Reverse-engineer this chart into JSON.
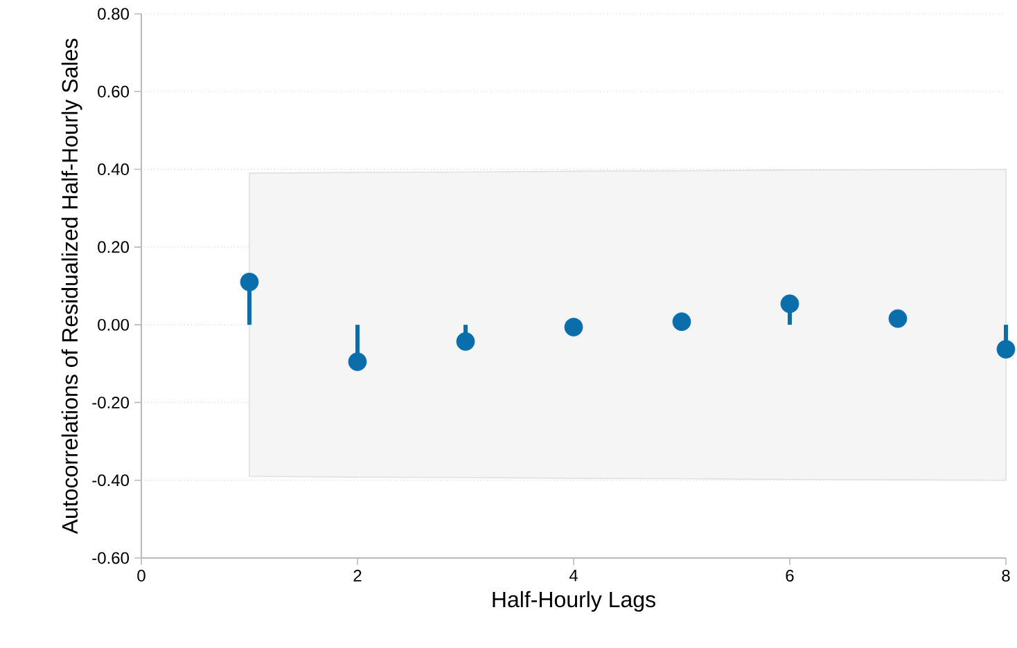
{
  "chart_data": {
    "type": "lollipop",
    "xlabel": "Half-Hourly Lags",
    "ylabel": "Autocorrelations of Residualized Half-Hourly Sales",
    "x": [
      1,
      2,
      3,
      4,
      5,
      6,
      7,
      8
    ],
    "series": [
      {
        "color": "#0a6eab",
        "values": [
          0.11,
          -0.095,
          -0.043,
          -0.006,
          0.008,
          0.054,
          0.016,
          -0.063
        ],
        "lower": [
          -0.39,
          -0.392,
          -0.393,
          -0.395,
          -0.396,
          -0.398,
          -0.399,
          -0.4
        ],
        "upper": [
          0.39,
          0.392,
          0.393,
          0.395,
          0.396,
          0.398,
          0.399,
          0.4
        ]
      }
    ],
    "xlim": [
      0,
      8
    ],
    "xticks": [
      0,
      2,
      4,
      6,
      8
    ],
    "ylim": [
      -0.6,
      0.8
    ],
    "yticks": [
      {
        "value": -0.6,
        "label": "-0.60"
      },
      {
        "value": -0.4,
        "label": "-0.40"
      },
      {
        "value": -0.2,
        "label": "-0.20"
      },
      {
        "value": 0,
        "label": "0.00"
      },
      {
        "value": 0.2,
        "label": "0.20"
      },
      {
        "value": 0.4,
        "label": "0.40"
      },
      {
        "value": 0.6,
        "label": "0.60"
      },
      {
        "value": 0.8,
        "label": "0.80"
      }
    ],
    "grid": "y",
    "marker": "circle"
  }
}
